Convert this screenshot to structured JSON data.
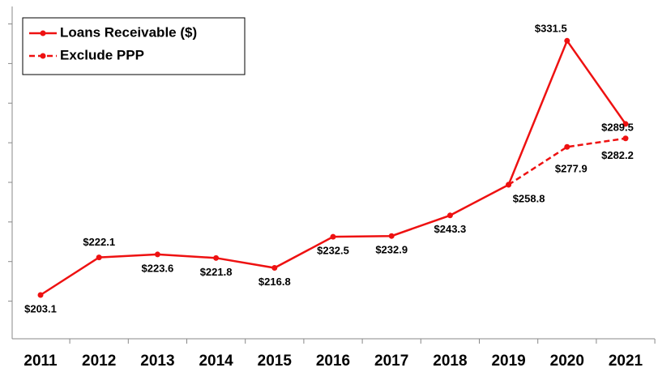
{
  "chart_data": {
    "type": "line",
    "categories": [
      "2011",
      "2012",
      "2013",
      "2014",
      "2015",
      "2016",
      "2017",
      "2018",
      "2019",
      "2020",
      "2021"
    ],
    "series": [
      {
        "name": "Loans Receivable ($)",
        "color": "#ee1111",
        "dash": false,
        "values": [
          203.1,
          222.1,
          223.6,
          221.8,
          216.8,
          232.5,
          232.9,
          243.3,
          258.8,
          331.5,
          289.5
        ],
        "value_labels": [
          "$203.1",
          "$222.1",
          "$223.6",
          "$221.8",
          "$216.8",
          "$232.5",
          "$232.9",
          "$243.3",
          "$258.8",
          "$331.5",
          "$289.5"
        ]
      },
      {
        "name": "Exclude PPP",
        "color": "#ee1111",
        "dash": true,
        "values": [
          null,
          null,
          null,
          null,
          null,
          null,
          null,
          null,
          258.8,
          277.9,
          282.2
        ],
        "value_labels": [
          null,
          null,
          null,
          null,
          null,
          null,
          null,
          null,
          null,
          "$277.9",
          "$282.2"
        ]
      }
    ],
    "ylim": [
      181,
      348
    ],
    "yticks": [
      200,
      220,
      240,
      260,
      280,
      300,
      320,
      340
    ],
    "legend": "upper left"
  }
}
